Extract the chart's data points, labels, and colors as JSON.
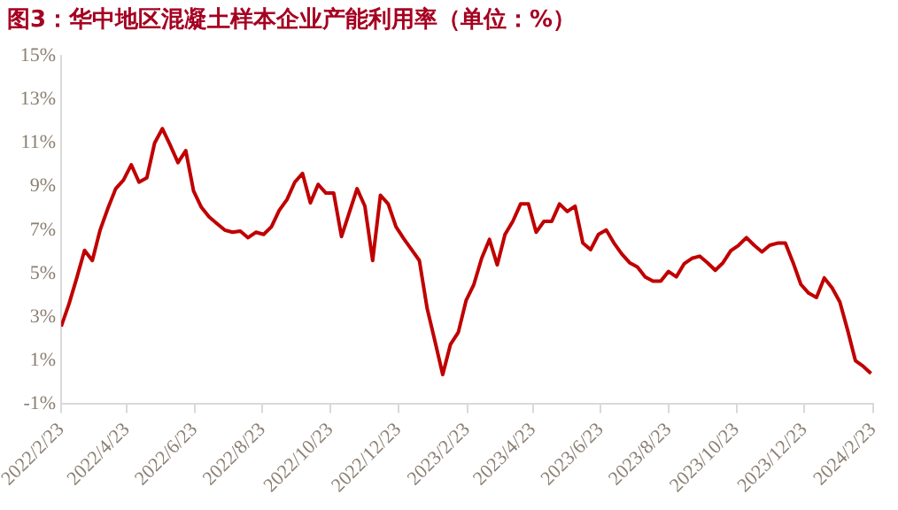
{
  "chart_data": {
    "type": "line",
    "title": "图3：华中地区混凝土样本企业产能利用率（单位：%）",
    "x": [
      "2022-02-23",
      "2022-03-02",
      "2022-03-09",
      "2022-03-16",
      "2022-03-23",
      "2022-03-30",
      "2022-04-06",
      "2022-04-13",
      "2022-04-20",
      "2022-04-27",
      "2022-05-04",
      "2022-05-11",
      "2022-05-18",
      "2022-05-25",
      "2022-06-01",
      "2022-06-08",
      "2022-06-15",
      "2022-06-22",
      "2022-06-29",
      "2022-07-06",
      "2022-07-13",
      "2022-07-20",
      "2022-07-27",
      "2022-08-03",
      "2022-08-10",
      "2022-08-17",
      "2022-08-24",
      "2022-08-31",
      "2022-09-07",
      "2022-09-14",
      "2022-09-21",
      "2022-09-28",
      "2022-10-05",
      "2022-10-12",
      "2022-10-19",
      "2022-10-26",
      "2022-11-02",
      "2022-11-09",
      "2022-11-16",
      "2022-11-23",
      "2022-11-30",
      "2022-12-07",
      "2022-12-14",
      "2022-12-21",
      "2022-12-28",
      "2023-01-04",
      "2023-01-11",
      "2023-01-18",
      "2023-01-25",
      "2023-02-01",
      "2023-02-08",
      "2023-02-15",
      "2023-02-22",
      "2023-03-01",
      "2023-03-08",
      "2023-03-15",
      "2023-03-22",
      "2023-03-29",
      "2023-04-05",
      "2023-04-12",
      "2023-04-19",
      "2023-04-26",
      "2023-05-03",
      "2023-05-10",
      "2023-05-17",
      "2023-05-24",
      "2023-05-31",
      "2023-06-07",
      "2023-06-14",
      "2023-06-21",
      "2023-06-28",
      "2023-07-05",
      "2023-07-12",
      "2023-07-19",
      "2023-07-26",
      "2023-08-02",
      "2023-08-09",
      "2023-08-16",
      "2023-08-23",
      "2023-08-30",
      "2023-09-06",
      "2023-09-13",
      "2023-09-20",
      "2023-09-27",
      "2023-10-04",
      "2023-10-11",
      "2023-10-18",
      "2023-10-25",
      "2023-11-01",
      "2023-11-08",
      "2023-11-15",
      "2023-11-22",
      "2023-11-29",
      "2023-12-06",
      "2023-12-13",
      "2023-12-20",
      "2023-12-27",
      "2024-01-03",
      "2024-01-10",
      "2024-01-17",
      "2024-01-24",
      "2024-01-31",
      "2024-02-07",
      "2024-02-14",
      "2024-02-21"
    ],
    "series": [
      {
        "color": "#c00000",
        "values": [
          2.57,
          3.6,
          4.8,
          6.07,
          5.6,
          7.0,
          8.0,
          8.9,
          9.3,
          10.0,
          9.2,
          9.4,
          11.0,
          11.66,
          10.9,
          10.1,
          10.65,
          8.8,
          8.05,
          7.6,
          7.3,
          7.0,
          6.9,
          6.95,
          6.65,
          6.9,
          6.8,
          7.15,
          7.9,
          8.4,
          9.2,
          9.6,
          8.25,
          9.1,
          8.7,
          8.7,
          6.7,
          7.8,
          8.9,
          8.1,
          5.6,
          8.6,
          8.2,
          7.15,
          6.6,
          6.1,
          5.6,
          3.4,
          1.9,
          0.36,
          1.75,
          2.3,
          3.76,
          4.5,
          5.7,
          6.57,
          5.4,
          6.8,
          7.4,
          8.2,
          8.2,
          6.9,
          7.4,
          7.4,
          8.2,
          7.85,
          8.1,
          6.4,
          6.1,
          6.8,
          7.0,
          6.4,
          5.9,
          5.5,
          5.3,
          4.85,
          4.65,
          4.65,
          5.1,
          4.85,
          5.45,
          5.7,
          5.8,
          5.5,
          5.15,
          5.5,
          6.05,
          6.3,
          6.65,
          6.3,
          6.0,
          6.3,
          6.4,
          6.4,
          5.5,
          4.5,
          4.1,
          3.9,
          4.8,
          4.35,
          3.7,
          2.4,
          1.0,
          0.74,
          0.41
        ]
      }
    ],
    "xlim": [
      "2022-02-23",
      "2024-02-23"
    ],
    "xticks": [
      {
        "value": "2022-02-23",
        "label": "2022/2/23"
      },
      {
        "value": "2022-04-23",
        "label": "2022/4/23"
      },
      {
        "value": "2022-06-23",
        "label": "2022/6/23"
      },
      {
        "value": "2022-08-23",
        "label": "2022/8/23"
      },
      {
        "value": "2022-10-23",
        "label": "2022/10/23"
      },
      {
        "value": "2022-12-23",
        "label": "2022/12/23"
      },
      {
        "value": "2023-02-23",
        "label": "2023/2/23"
      },
      {
        "value": "2023-04-23",
        "label": "2023/4/23"
      },
      {
        "value": "2023-06-23",
        "label": "2023/6/23"
      },
      {
        "value": "2023-08-23",
        "label": "2023/8/23"
      },
      {
        "value": "2023-10-23",
        "label": "2023/10/23"
      },
      {
        "value": "2023-12-23",
        "label": "2023/12/23"
      },
      {
        "value": "2024-02-23",
        "label": "2024/2/23"
      }
    ],
    "ylim": [
      -1,
      15
    ],
    "yticks": [
      {
        "value": -1,
        "label": "-1%"
      },
      {
        "value": 1,
        "label": "1%"
      },
      {
        "value": 3,
        "label": "3%"
      },
      {
        "value": 5,
        "label": "5%"
      },
      {
        "value": 7,
        "label": "7%"
      },
      {
        "value": 9,
        "label": "9%"
      },
      {
        "value": 11,
        "label": "11%"
      },
      {
        "value": 13,
        "label": "13%"
      },
      {
        "value": 15,
        "label": "15%"
      }
    ],
    "grid": false,
    "legend": false,
    "marker": "none",
    "line_style": "solid"
  }
}
